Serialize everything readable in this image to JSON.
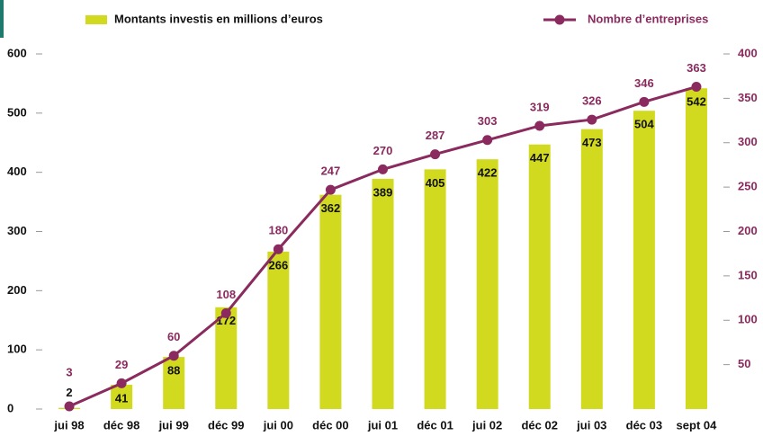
{
  "chart_data": {
    "type": "bar_line",
    "categories": [
      "jui 98",
      "déc 98",
      "jui 99",
      "déc 99",
      "jui 00",
      "déc 00",
      "jui 01",
      "déc 01",
      "jui 02",
      "déc 02",
      "jui 03",
      "déc 03",
      "sept 04"
    ],
    "series": [
      {
        "name": "Montants investis en millions d’euros",
        "color": "#d2da1f",
        "type": "bar",
        "axis": "y",
        "values": [
          2,
          41,
          88,
          172,
          266,
          362,
          389,
          405,
          422,
          447,
          473,
          504,
          542
        ]
      },
      {
        "name": "Nombre d’entreprises",
        "color": "#8a2a5e",
        "type": "line",
        "axis": "y2",
        "values": [
          3,
          29,
          60,
          108,
          180,
          247,
          270,
          287,
          303,
          319,
          326,
          346,
          363
        ]
      }
    ],
    "ylim": [
      0,
      600
    ],
    "yticks": [
      0,
      100,
      200,
      300,
      400,
      500,
      600
    ],
    "y2lim": [
      0,
      400
    ],
    "y2ticks": [
      50,
      100,
      150,
      200,
      250,
      300,
      350,
      400
    ]
  }
}
